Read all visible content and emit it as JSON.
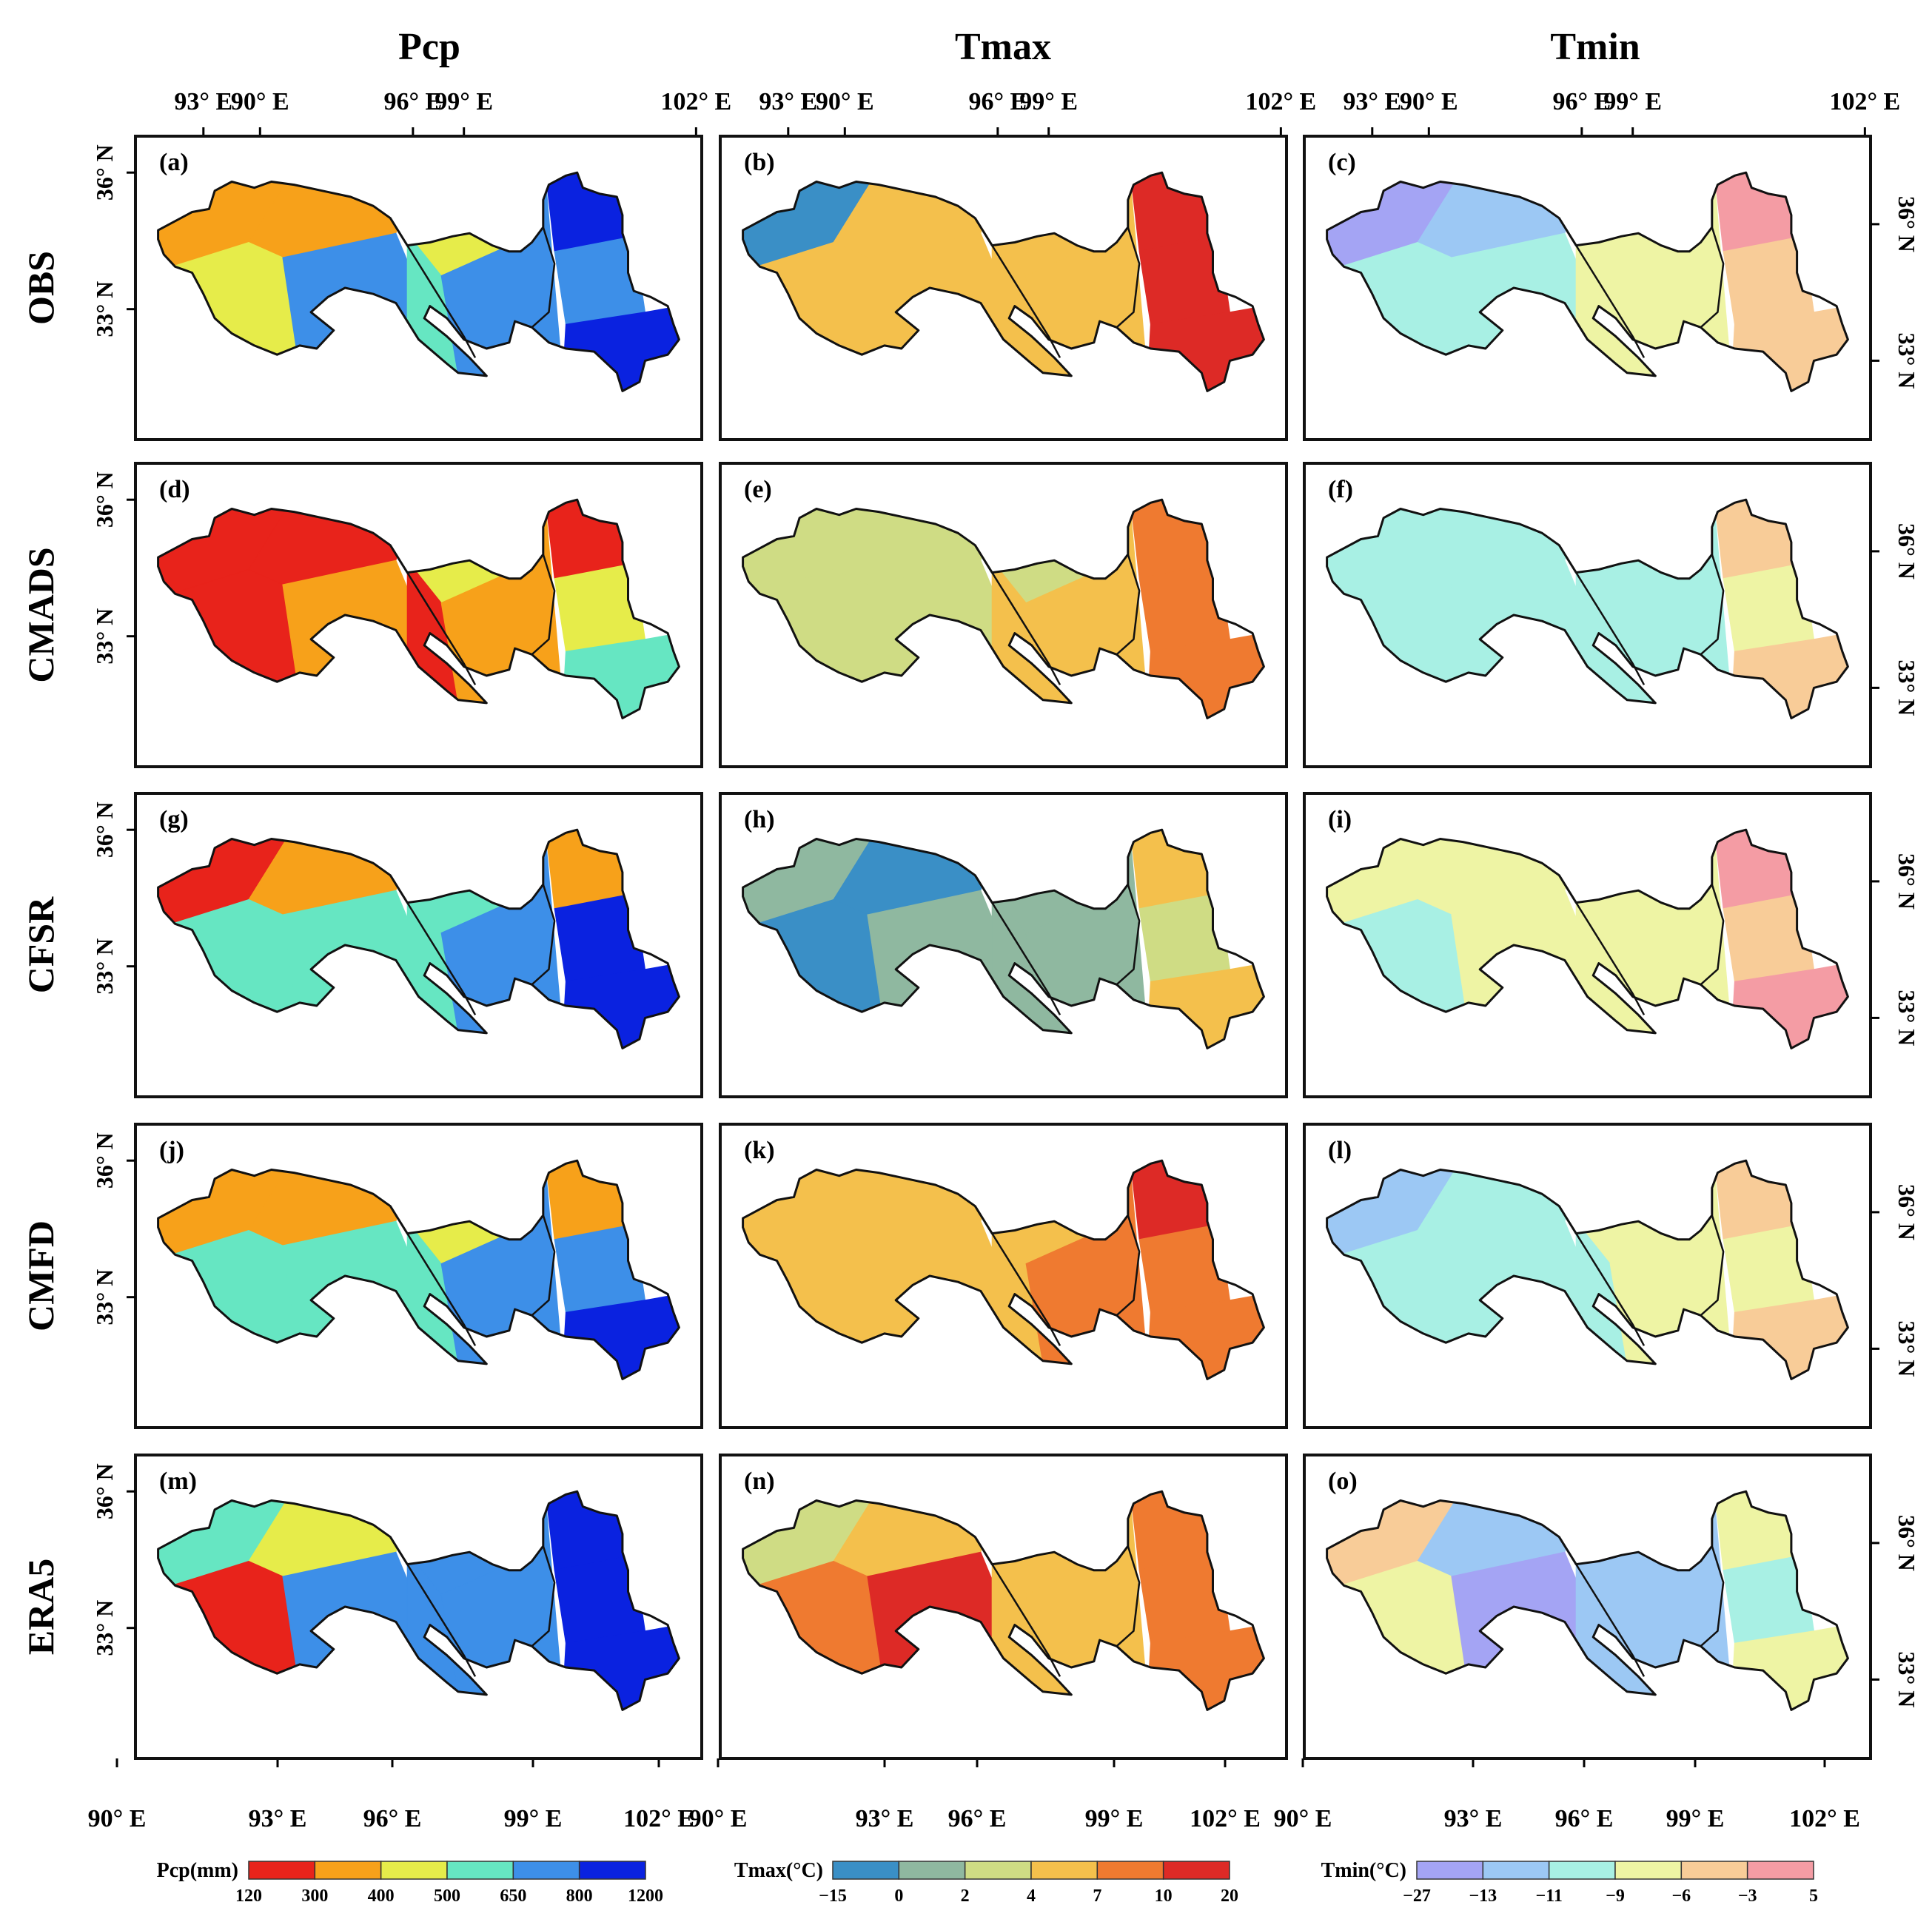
{
  "chart_data": {
    "type": "heatmap",
    "description_kind": "3x5 grid of categorical climate maps",
    "column_titles": [
      "Pcp",
      "Tmax",
      "Tmin"
    ],
    "row_titles": [
      "OBS",
      "CMADS",
      "CFSR",
      "CMFD",
      "ERA5"
    ],
    "panel_labels": [
      "(a)",
      "(b)",
      "(c)",
      "(d)",
      "(e)",
      "(f)",
      "(g)",
      "(h)",
      "(i)",
      "(j)",
      "(k)",
      "(l)",
      "(m)",
      "(n)",
      "(o)"
    ],
    "x_ticks": [
      "90° E",
      "93° E",
      "96° E",
      "99° E",
      "102° E"
    ],
    "y_ticks": [
      "36° N",
      "33° N"
    ],
    "xlim": [
      89.5,
      104.5
    ],
    "ylim": [
      30.5,
      37.8
    ],
    "legends": [
      {
        "title": "Pcp(mm)",
        "breaks": [
          "120",
          "300",
          "400",
          "500",
          "650",
          "800",
          "1200"
        ],
        "colors": [
          "#e8231b",
          "#f7a11a",
          "#e6ec4a",
          "#66e6c2",
          "#3d8fe8",
          "#0a22e0"
        ]
      },
      {
        "title": "Tmax(°C)",
        "breaks": [
          "−15",
          "0",
          "2",
          "4",
          "7",
          "10",
          "20"
        ],
        "colors": [
          "#3a8fc6",
          "#8fb8a0",
          "#cfdc84",
          "#f4c04c",
          "#ef7a30",
          "#dd2a26"
        ]
      },
      {
        "title": "Tmin(°C)",
        "breaks": [
          "−27",
          "−13",
          "−11",
          "−9",
          "−6",
          "−3",
          "5"
        ],
        "colors": [
          "#a4a4f4",
          "#9cc8f4",
          "#a8f0e4",
          "#eef4a4",
          "#f8cc98",
          "#f49ca4"
        ]
      }
    ],
    "panels": [
      {
        "label": "(a)",
        "row": "OBS",
        "col": "Pcp",
        "classes": [
          1,
          1,
          2,
          4,
          2,
          3,
          4,
          5,
          4,
          5
        ]
      },
      {
        "label": "(b)",
        "row": "OBS",
        "col": "Tmax",
        "classes": [
          0,
          3,
          3,
          3,
          3,
          3,
          3,
          5,
          5,
          5
        ]
      },
      {
        "label": "(c)",
        "row": "OBS",
        "col": "Tmin",
        "classes": [
          0,
          1,
          2,
          2,
          3,
          3,
          3,
          5,
          4,
          4
        ]
      },
      {
        "label": "(d)",
        "row": "CMADS",
        "col": "Pcp",
        "classes": [
          0,
          0,
          0,
          1,
          2,
          0,
          1,
          0,
          2,
          3
        ]
      },
      {
        "label": "(e)",
        "row": "CMADS",
        "col": "Tmax",
        "classes": [
          2,
          2,
          2,
          2,
          2,
          3,
          3,
          4,
          4,
          4
        ]
      },
      {
        "label": "(f)",
        "row": "CMADS",
        "col": "Tmin",
        "classes": [
          2,
          2,
          2,
          2,
          2,
          2,
          2,
          4,
          3,
          4
        ]
      },
      {
        "label": "(g)",
        "row": "CFSR",
        "col": "Pcp",
        "classes": [
          0,
          1,
          3,
          3,
          3,
          3,
          4,
          1,
          5,
          5
        ]
      },
      {
        "label": "(h)",
        "row": "CFSR",
        "col": "Tmax",
        "classes": [
          1,
          0,
          0,
          1,
          1,
          1,
          1,
          3,
          2,
          3
        ]
      },
      {
        "label": "(i)",
        "row": "CFSR",
        "col": "Tmin",
        "classes": [
          3,
          3,
          2,
          3,
          3,
          3,
          3,
          5,
          4,
          5
        ]
      },
      {
        "label": "(j)",
        "row": "CMFD",
        "col": "Pcp",
        "classes": [
          1,
          1,
          3,
          3,
          2,
          3,
          4,
          1,
          4,
          5
        ]
      },
      {
        "label": "(k)",
        "row": "CMFD",
        "col": "Tmax",
        "classes": [
          3,
          3,
          3,
          3,
          3,
          3,
          4,
          5,
          4,
          4
        ]
      },
      {
        "label": "(l)",
        "row": "CMFD",
        "col": "Tmin",
        "classes": [
          1,
          2,
          2,
          2,
          3,
          2,
          3,
          4,
          3,
          4
        ]
      },
      {
        "label": "(m)",
        "row": "ERA5",
        "col": "Pcp",
        "classes": [
          3,
          2,
          0,
          4,
          4,
          4,
          4,
          5,
          5,
          5
        ]
      },
      {
        "label": "(n)",
        "row": "ERA5",
        "col": "Tmax",
        "classes": [
          2,
          3,
          4,
          5,
          3,
          3,
          3,
          4,
          4,
          4
        ]
      },
      {
        "label": "(o)",
        "row": "ERA5",
        "col": "Tmin",
        "classes": [
          4,
          1,
          3,
          0,
          1,
          1,
          1,
          3,
          2,
          3
        ]
      }
    ]
  }
}
